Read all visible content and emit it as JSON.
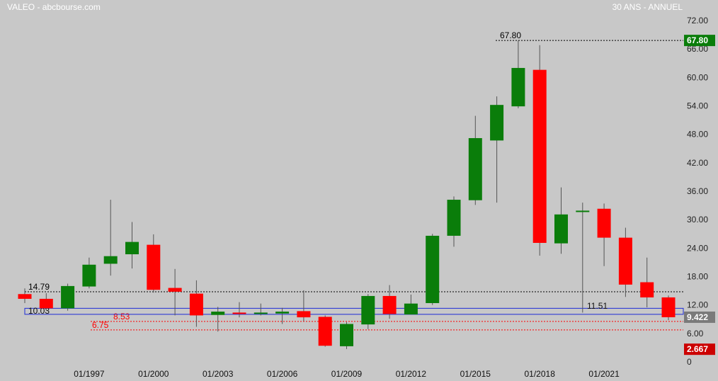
{
  "header": {
    "left_title": "VALEO - abcbourse.com",
    "right_title": "30 ANS - ANNUEL"
  },
  "colors": {
    "up": "#0a7d0a",
    "down": "#ff0000",
    "background": "#c8c8c8",
    "box": "#1d2bd6",
    "badge_up": "#0a7d0a",
    "badge_current": "#7a7a7a",
    "badge_low": "#cc0000"
  },
  "chart_data": {
    "type": "candlestick",
    "title": "",
    "xlabel": "",
    "ylabel": "",
    "ylim": [
      0,
      72
    ],
    "y_ticks": [
      "72.00",
      "66.00",
      "60.00",
      "54.00",
      "48.00",
      "42.00",
      "36.00",
      "30.00",
      "24.00",
      "18.00",
      "12.00",
      "6.00",
      "0"
    ],
    "y_tick_values": [
      72,
      66,
      60,
      54,
      48,
      42,
      36,
      30,
      24,
      18,
      12,
      6,
      0
    ],
    "x_tick_labels": [
      "01/1997",
      "01/2000",
      "01/2003",
      "01/2006",
      "01/2009",
      "01/2012",
      "01/2015",
      "01/2018",
      "01/2021"
    ],
    "x_tick_years": [
      1997,
      2000,
      2003,
      2006,
      2009,
      2012,
      2015,
      2018,
      2021
    ],
    "candles": [
      {
        "year": 1994,
        "open": 14.3,
        "high": 15.5,
        "low": 12.4,
        "close": 13.3
      },
      {
        "year": 1995,
        "open": 13.3,
        "high": 14.5,
        "low": 10.8,
        "close": 11.3
      },
      {
        "year": 1996,
        "open": 11.3,
        "high": 16.5,
        "low": 10.8,
        "close": 16.0
      },
      {
        "year": 1997,
        "open": 15.9,
        "high": 22.0,
        "low": 15.5,
        "close": 20.5
      },
      {
        "year": 1998,
        "open": 20.7,
        "high": 34.2,
        "low": 18.2,
        "close": 22.3
      },
      {
        "year": 1999,
        "open": 22.7,
        "high": 29.5,
        "low": 19.7,
        "close": 25.3
      },
      {
        "year": 2000,
        "open": 24.7,
        "high": 26.9,
        "low": 14.6,
        "close": 15.2
      },
      {
        "year": 2001,
        "open": 15.6,
        "high": 19.6,
        "low": 9.8,
        "close": 14.8
      },
      {
        "year": 2002,
        "open": 14.4,
        "high": 17.2,
        "low": 7.4,
        "close": 9.8
      },
      {
        "year": 2003,
        "open": 9.9,
        "high": 11.6,
        "low": 6.4,
        "close": 10.6
      },
      {
        "year": 2004,
        "open": 10.4,
        "high": 12.6,
        "low": 9.4,
        "close": 10.1
      },
      {
        "year": 2005,
        "open": 10.1,
        "high": 12.3,
        "low": 9.8,
        "close": 10.4
      },
      {
        "year": 2006,
        "open": 10.2,
        "high": 11.4,
        "low": 8.0,
        "close": 10.6
      },
      {
        "year": 2007,
        "open": 10.7,
        "high": 15.1,
        "low": 8.6,
        "close": 9.4
      },
      {
        "year": 2008,
        "open": 9.5,
        "high": 9.8,
        "low": 3.2,
        "close": 3.4
      },
      {
        "year": 2009,
        "open": 3.3,
        "high": 8.4,
        "low": 2.7,
        "close": 8.0
      },
      {
        "year": 2010,
        "open": 7.9,
        "high": 14.3,
        "low": 6.9,
        "close": 13.9
      },
      {
        "year": 2011,
        "open": 13.9,
        "high": 16.2,
        "low": 9.1,
        "close": 10.1
      },
      {
        "year": 2012,
        "open": 10.0,
        "high": 14.2,
        "low": 10.0,
        "close": 12.3
      },
      {
        "year": 2013,
        "open": 12.4,
        "high": 27.0,
        "low": 12.0,
        "close": 26.6
      },
      {
        "year": 2014,
        "open": 26.6,
        "high": 34.9,
        "low": 24.3,
        "close": 34.2
      },
      {
        "year": 2015,
        "open": 34.1,
        "high": 51.9,
        "low": 33.1,
        "close": 47.2
      },
      {
        "year": 2016,
        "open": 46.7,
        "high": 56.0,
        "low": 33.6,
        "close": 54.2
      },
      {
        "year": 2017,
        "open": 53.9,
        "high": 67.8,
        "low": 53.5,
        "close": 62.0
      },
      {
        "year": 2018,
        "open": 61.6,
        "high": 66.8,
        "low": 22.4,
        "close": 25.1
      },
      {
        "year": 2019,
        "open": 25.0,
        "high": 36.8,
        "low": 22.8,
        "close": 31.1
      },
      {
        "year": 2020,
        "open": 31.6,
        "high": 33.6,
        "low": 10.4,
        "close": 31.9
      },
      {
        "year": 2021,
        "open": 32.3,
        "high": 33.4,
        "low": 20.2,
        "close": 26.2
      },
      {
        "year": 2022,
        "open": 26.2,
        "high": 28.3,
        "low": 13.7,
        "close": 16.3
      },
      {
        "year": 2023,
        "open": 16.8,
        "high": 22.0,
        "low": 11.5,
        "close": 13.6
      },
      {
        "year": 2024,
        "open": 13.6,
        "high": 14.0,
        "low": 8.8,
        "close": 9.422
      }
    ],
    "levels": [
      {
        "label": "67.80",
        "value": 67.8,
        "style": "dotted",
        "color": "#000000"
      },
      {
        "label": "14.79",
        "value": 14.79,
        "style": "dotted",
        "color": "#000000"
      },
      {
        "label": "8.53",
        "value": 8.53,
        "style": "dotted",
        "color": "#ff0000"
      },
      {
        "label": "6.75",
        "value": 6.75,
        "style": "dotted",
        "color": "#ff0000"
      }
    ],
    "annotation_low": {
      "label": "11.51",
      "value": 11.51
    },
    "box": {
      "label": "10.03",
      "top": 11.3,
      "bottom": 10.03
    },
    "badges": [
      {
        "label": "67.80",
        "value": 67.8,
        "color": "#0a7d0a"
      },
      {
        "label": "9.422",
        "value": 9.422,
        "color": "#7a7a7a"
      },
      {
        "label": "2.667",
        "value": 2.667,
        "color": "#cc0000"
      }
    ]
  }
}
